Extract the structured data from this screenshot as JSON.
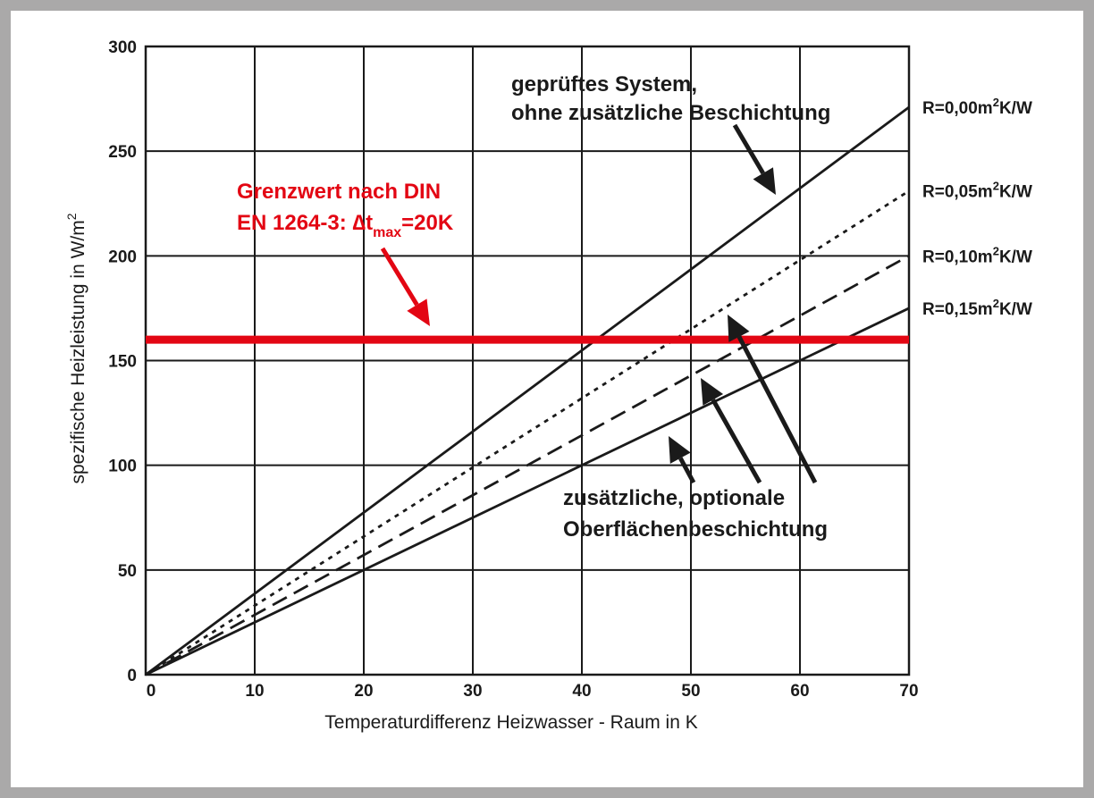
{
  "chart_data": {
    "type": "line",
    "xlabel": "Temperaturdifferenz Heizwasser - Raum in K",
    "ylabel": "spezifische Heizleistung in W/m²",
    "xlim": [
      0,
      70
    ],
    "ylim": [
      0,
      300
    ],
    "x_ticks": [
      "0",
      "10",
      "20",
      "30",
      "40",
      "50",
      "60",
      "70"
    ],
    "y_ticks": [
      "0",
      "50",
      "100",
      "150",
      "200",
      "250",
      "300"
    ],
    "x_tick_values": [
      0,
      10,
      20,
      30,
      40,
      50,
      60,
      70
    ],
    "y_tick_values": [
      0,
      50,
      100,
      150,
      200,
      250,
      300
    ],
    "grid": true,
    "series": [
      {
        "name": "R=0,00m²K/W",
        "style": "solid",
        "x": [
          0,
          70
        ],
        "y": [
          0,
          271
        ]
      },
      {
        "name": "R=0,05m²K/W",
        "style": "dotted",
        "x": [
          0,
          70
        ],
        "y": [
          0,
          231
        ]
      },
      {
        "name": "R=0,10m²K/W",
        "style": "dashed",
        "x": [
          0,
          70
        ],
        "y": [
          0,
          200
        ]
      },
      {
        "name": "R=0,15m²K/W",
        "style": "solid",
        "x": [
          0,
          70
        ],
        "y": [
          0,
          175
        ]
      }
    ],
    "threshold": {
      "y": 160,
      "color": "#e30613"
    },
    "annotations": {
      "tested_line1": "geprüftes System,",
      "tested_line2": "ohne zusätzliche Beschichtung",
      "limit_line1": "Grenzwert nach DIN",
      "limit_line2_prefix": "EN 1264-3: ",
      "limit_delta": "∆t",
      "limit_sub": "max",
      "limit_suffix": "=20K",
      "coating_line1": "zusätzliche, optionale",
      "coating_line2": "Oberflächenbeschichtung"
    }
  },
  "colors": {
    "border": "#aaa9a9",
    "lines": "#1a1a1a",
    "limit": "#e30613"
  }
}
